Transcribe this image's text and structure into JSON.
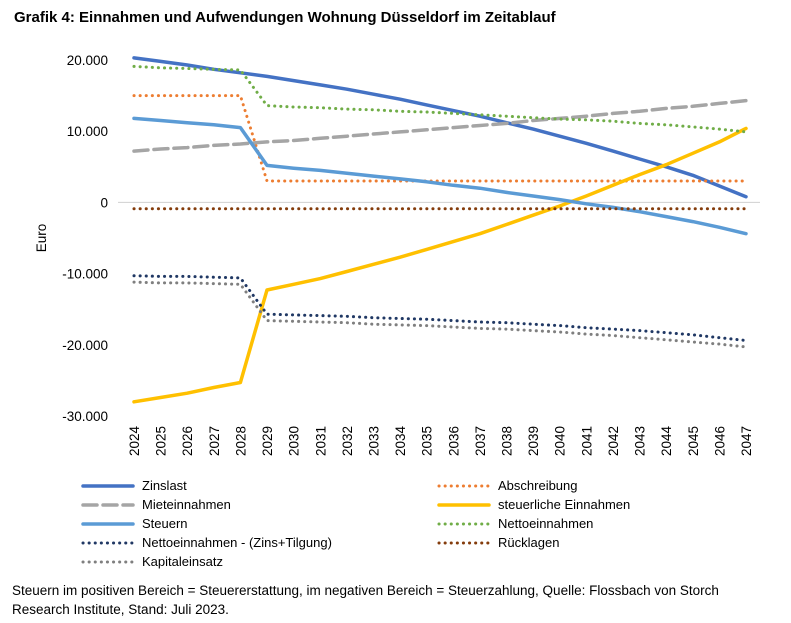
{
  "chart_data": {
    "type": "line",
    "title": "Grafik 4: Einnahmen und Aufwendungen Wohnung Düsseldorf im Zeitablauf",
    "xlabel": "",
    "ylabel": "Euro",
    "ylim": [
      -30000,
      20000
    ],
    "yticks": [
      {
        "value": 20000,
        "label": "20.000"
      },
      {
        "value": 10000,
        "label": "10.000"
      },
      {
        "value": 0,
        "label": "0"
      },
      {
        "value": -10000,
        "label": "-10.000"
      },
      {
        "value": -20000,
        "label": "-20.000"
      },
      {
        "value": -30000,
        "label": "-30.000"
      }
    ],
    "categories": [
      "2024",
      "2025",
      "2026",
      "2027",
      "2028",
      "2029",
      "2030",
      "2031",
      "2032",
      "2033",
      "2034",
      "2035",
      "2036",
      "2037",
      "2038",
      "2039",
      "2040",
      "2041",
      "2042",
      "2043",
      "2044",
      "2045",
      "2046",
      "2047"
    ],
    "series": [
      {
        "name": "Zinslast",
        "color": "#4472C4",
        "style": "solid",
        "width": 3.5,
        "values": [
          20300,
          19800,
          19300,
          18700,
          18200,
          17700,
          17100,
          16500,
          15900,
          15200,
          14500,
          13700,
          12900,
          12100,
          11200,
          10300,
          9300,
          8300,
          7200,
          6100,
          5000,
          3800,
          2300,
          800
        ]
      },
      {
        "name": "Abschreibung",
        "color": "#ED7D31",
        "style": "dotted",
        "width": 3,
        "values": [
          15000,
          15000,
          15000,
          15000,
          15000,
          3000,
          3000,
          3000,
          3000,
          3000,
          3000,
          3000,
          3000,
          3000,
          3000,
          3000,
          3000,
          3000,
          3000,
          3000,
          3000,
          3000,
          3000,
          3000
        ]
      },
      {
        "name": "Mieteinnahmen",
        "color": "#A5A5A5",
        "style": "dashed",
        "width": 3.5,
        "values": [
          7200,
          7500,
          7700,
          8000,
          8200,
          8500,
          8700,
          9000,
          9300,
          9600,
          9900,
          10200,
          10500,
          10800,
          11100,
          11500,
          11800,
          12100,
          12500,
          12800,
          13200,
          13500,
          13900,
          14300
        ]
      },
      {
        "name": "steuerliche Einnahmen",
        "color": "#FFC000",
        "style": "solid",
        "width": 3.5,
        "values": [
          -28000,
          -27400,
          -26800,
          -26000,
          -25300,
          -12300,
          -11500,
          -10700,
          -9700,
          -8700,
          -7700,
          -6600,
          -5500,
          -4400,
          -3100,
          -1800,
          -500,
          900,
          2400,
          3900,
          5300,
          6900,
          8500,
          10400
        ]
      },
      {
        "name": "Steuern",
        "color": "#5B9BD5",
        "style": "solid",
        "width": 3.5,
        "values": [
          11800,
          11500,
          11200,
          10900,
          10500,
          5200,
          4800,
          4500,
          4100,
          3700,
          3300,
          2900,
          2400,
          2000,
          1400,
          900,
          400,
          -200,
          -700,
          -1300,
          -2000,
          -2700,
          -3500,
          -4400
        ]
      },
      {
        "name": "Nettoeinnahmen",
        "color": "#70AD47",
        "style": "dotted",
        "width": 3,
        "values": [
          19100,
          18900,
          18800,
          18700,
          18600,
          13600,
          13400,
          13300,
          13100,
          13000,
          12800,
          12700,
          12500,
          12300,
          12100,
          11900,
          11700,
          11600,
          11400,
          11100,
          10900,
          10600,
          10300,
          9900
        ]
      },
      {
        "name": "Nettoeinnahmen - (Zins+Tilgung)",
        "color": "#203864",
        "style": "dotted",
        "width": 3,
        "values": [
          -10300,
          -10400,
          -10400,
          -10500,
          -10600,
          -15700,
          -15800,
          -15900,
          -16000,
          -16200,
          -16300,
          -16400,
          -16600,
          -16800,
          -16900,
          -17100,
          -17300,
          -17600,
          -17800,
          -18000,
          -18300,
          -18600,
          -19000,
          -19400
        ]
      },
      {
        "name": "Rücklagen",
        "color": "#843C0C",
        "style": "dotted",
        "width": 3,
        "values": [
          -900,
          -900,
          -900,
          -900,
          -900,
          -900,
          -900,
          -900,
          -900,
          -900,
          -900,
          -900,
          -900,
          -900,
          -900,
          -900,
          -900,
          -900,
          -900,
          -900,
          -900,
          -900,
          -900,
          -900
        ]
      },
      {
        "name": "Kapitaleinsatz",
        "color": "#7F7F7F",
        "style": "dotted",
        "width": 3,
        "values": [
          -11200,
          -11300,
          -11300,
          -11400,
          -11500,
          -16600,
          -16700,
          -16800,
          -16900,
          -17100,
          -17200,
          -17300,
          -17500,
          -17700,
          -17800,
          -18000,
          -18200,
          -18500,
          -18700,
          -19000,
          -19300,
          -19600,
          -19900,
          -20300
        ]
      }
    ],
    "legend_position": "bottom"
  },
  "footnote": "Steuern im positiven Bereich = Steuererstattung, im negativen Bereich = Steuerzahlung, Quelle: Flossbach von Storch Research Institute, Stand: Juli 2023."
}
